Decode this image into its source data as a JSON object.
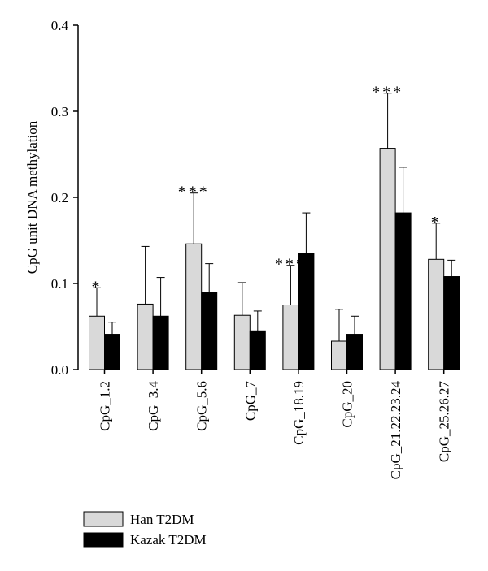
{
  "chart_data": {
    "type": "bar",
    "title": "",
    "xlabel": "",
    "ylabel": "CpG unit DNA methylation",
    "ylim": [
      0,
      0.4
    ],
    "yticks": [
      "0.0",
      "0.1",
      "0.2",
      "0.3",
      "0.4"
    ],
    "grid": false,
    "legend_position": "bottom-left",
    "categories": [
      "CpG_1.2",
      "CpG_3.4",
      "CpG_5.6",
      "CpG_7",
      "CpG_18.19",
      "CpG_20",
      "CpG_21.22.23.24",
      "CpG_25.26.27"
    ],
    "series": [
      {
        "name": "Han T2DM",
        "color": "#d9d9d9",
        "values": [
          0.062,
          0.076,
          0.146,
          0.063,
          0.075,
          0.033,
          0.257,
          0.128
        ],
        "error": [
          0.033,
          0.067,
          0.059,
          0.038,
          0.046,
          0.037,
          0.064,
          0.042
        ]
      },
      {
        "name": "Kazak T2DM",
        "color": "#000000",
        "values": [
          0.041,
          0.062,
          0.09,
          0.045,
          0.135,
          0.041,
          0.182,
          0.108
        ],
        "error": [
          0.014,
          0.045,
          0.033,
          0.023,
          0.047,
          0.021,
          0.053,
          0.019
        ]
      }
    ],
    "significance": [
      "*",
      "",
      "***",
      "",
      "***",
      "",
      "***",
      "*"
    ]
  }
}
